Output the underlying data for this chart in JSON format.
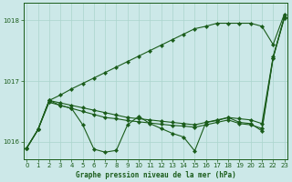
{
  "title": "Graphe pression niveau de la mer (hPa)",
  "bg_color": "#cce8e8",
  "line_color": "#1a5c1a",
  "grid_color": "#aad4cc",
  "axis_color": "#1a5c1a",
  "xlim": [
    -0.3,
    23.3
  ],
  "ylim": [
    1015.72,
    1018.28
  ],
  "yticks": [
    1016,
    1017,
    1018
  ],
  "xticks": [
    0,
    1,
    2,
    3,
    4,
    5,
    6,
    7,
    8,
    9,
    10,
    11,
    12,
    13,
    14,
    15,
    16,
    17,
    18,
    19,
    20,
    21,
    22,
    23
  ],
  "line1_upper_diagonal": [
    1015.9,
    1016.2,
    1016.68,
    1016.77,
    1016.87,
    1016.96,
    1017.05,
    1017.14,
    1017.23,
    1017.32,
    1017.41,
    1017.5,
    1017.59,
    1017.68,
    1017.77,
    1017.86,
    1017.9,
    1017.95,
    1017.95,
    1017.95,
    1017.95,
    1017.9,
    1017.6,
    1018.1
  ],
  "line2_flat_upper": [
    1015.9,
    1016.2,
    1016.68,
    1016.64,
    1016.6,
    1016.56,
    1016.52,
    1016.48,
    1016.44,
    1016.4,
    1016.38,
    1016.36,
    1016.34,
    1016.32,
    1016.3,
    1016.28,
    1016.32,
    1016.36,
    1016.4,
    1016.38,
    1016.36,
    1016.3,
    1017.4,
    1018.05
  ],
  "line3_flat_lower": [
    1015.9,
    1016.2,
    1016.65,
    1016.6,
    1016.55,
    1016.5,
    1016.45,
    1016.4,
    1016.38,
    1016.35,
    1016.33,
    1016.31,
    1016.29,
    1016.27,
    1016.26,
    1016.24,
    1016.28,
    1016.32,
    1016.36,
    1016.3,
    1016.28,
    1016.22,
    1017.38,
    1018.03
  ],
  "line4_jagged": [
    1015.9,
    1016.2,
    1016.68,
    1016.6,
    1016.55,
    1016.28,
    1015.88,
    1015.83,
    1015.86,
    1016.28,
    1016.42,
    1016.3,
    1016.22,
    1016.14,
    1016.08,
    1015.85,
    1016.32,
    1016.35,
    1016.4,
    1016.32,
    1016.3,
    1016.18,
    1017.38,
    1018.05
  ]
}
